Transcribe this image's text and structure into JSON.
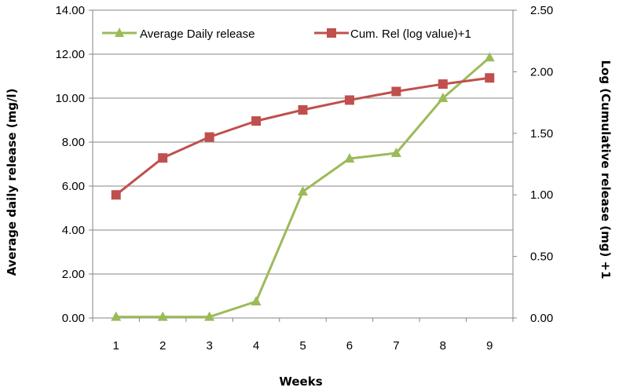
{
  "chart_data": {
    "type": "line",
    "title": "",
    "xlabel": "Weeks",
    "ylabel_left": "Average daily release (mg/l)",
    "ylabel_right": "Log (Cumulative release (mg) +1",
    "categories": [
      "1",
      "2",
      "3",
      "4",
      "5",
      "6",
      "7",
      "8",
      "9"
    ],
    "y_left": {
      "range": [
        0,
        14
      ],
      "ticks": [
        0,
        2,
        4,
        6,
        8,
        10,
        12,
        14
      ],
      "tick_labels": [
        "0.00",
        "2.00",
        "4.00",
        "6.00",
        "8.00",
        "10.00",
        "12.00",
        "14.00"
      ]
    },
    "y_right": {
      "range": [
        0,
        2.5
      ],
      "ticks": [
        0,
        0.5,
        1.0,
        1.5,
        2.0,
        2.5
      ],
      "tick_labels": [
        "0.00",
        "0.50",
        "1.00",
        "1.50",
        "2.00",
        "2.50"
      ]
    },
    "grid": true,
    "legend_position": "top",
    "series": [
      {
        "name": "Average Daily release",
        "axis": "left",
        "marker": "triangle",
        "color": "#9BBB59",
        "values": [
          0.05,
          0.05,
          0.05,
          0.75,
          5.75,
          7.25,
          7.5,
          10.0,
          11.85
        ]
      },
      {
        "name": "Cum. Rel (log value)+1",
        "axis": "right",
        "marker": "square",
        "color": "#C0504D",
        "values": [
          1.0,
          1.3,
          1.47,
          1.6,
          1.69,
          1.77,
          1.84,
          1.9,
          1.95
        ]
      }
    ]
  }
}
